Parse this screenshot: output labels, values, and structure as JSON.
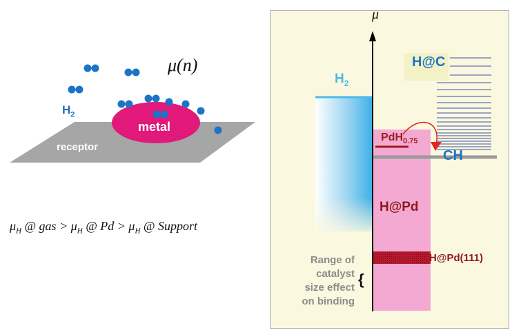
{
  "left": {
    "mu_n": "μ(n)",
    "h2": {
      "base": "H",
      "sub": "2"
    },
    "metal": "metal",
    "receptor": "receptor",
    "formula": {
      "mu": "μ",
      "sub": "H",
      "t1": " @ gas > ",
      "t2": " @ Pd > ",
      "t3": " @ Support"
    }
  },
  "right": {
    "axis_label": "μ",
    "h2": {
      "base": "H",
      "sub": "2"
    },
    "hc": "H@C",
    "pdh": {
      "base": "PdH",
      "sub": "0.75"
    },
    "ch": "CH",
    "hpd": "H@Pd",
    "hpd111": "H@Pd(111)",
    "range_lines": [
      "Range of",
      "catalyst",
      "size effect",
      "on binding"
    ],
    "brace": "{"
  },
  "colors": {
    "molecule_blue": "#1b74c5",
    "metal_pink": "#e0197a",
    "receptor_gray": "#a6a6a6",
    "h2_light_blue": "#4db9ea",
    "hpd_pink": "#f3a9d2",
    "dark_red": "#9b1c1f",
    "arrow_red": "#e02a20",
    "panel_bg": "#fbf8e0"
  }
}
